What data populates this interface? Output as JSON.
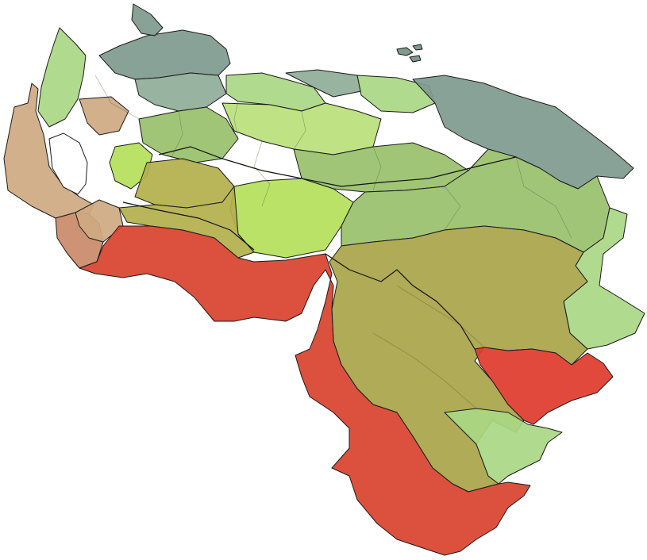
{
  "map": {
    "type": "choropleth",
    "labels_shown": false,
    "legend_shown": false,
    "palette": {
      "red": "#e03a2c",
      "red_dark": "#d9412e",
      "tan": "#cfa982",
      "tan_dark": "#c98a68",
      "slate": "#7f9a8f",
      "slate_light": "#8fac98",
      "green_light": "#a9d783",
      "green_mid": "#98c06a",
      "green_bright": "#b3e05a",
      "olive": "#a8a448",
      "olive_light": "#b3b04c",
      "lime_pale": "#b8e07a",
      "sea_blue": "#8fa8a8",
      "water": "#ffffff"
    }
  }
}
